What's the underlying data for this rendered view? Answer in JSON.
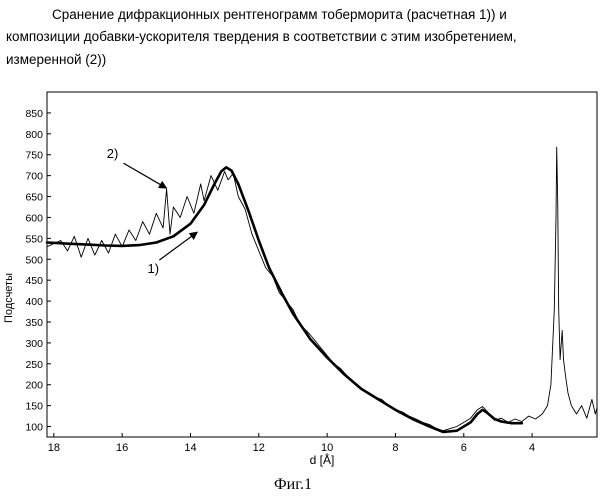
{
  "title_lines": [
    "Сранение дифракционных рентгенограмм тоберморита (расчетная 1)) и",
    "композиции добавки-ускорителя твердения в соответствии с этим изобретением,",
    "измеренной (2))"
  ],
  "figure_caption": "Фиг.1",
  "chart_data": {
    "type": "line",
    "title": "Сранение дифракционных рентгенограмм тоберморита (расчетная 1)) и композиции добавки-ускорителя твердения в соответствии с этим изобретением, измеренной (2))",
    "xlabel": "d [Å]",
    "ylabel": "Подсчеты",
    "x_reversed": true,
    "xlim": [
      18.2,
      2.1
    ],
    "ylim": [
      75,
      900
    ],
    "x_ticks": [
      18,
      16,
      14,
      12,
      10,
      8,
      6,
      4
    ],
    "y_ticks": [
      100,
      150,
      200,
      250,
      300,
      350,
      400,
      450,
      500,
      550,
      600,
      650,
      700,
      750,
      800,
      850
    ],
    "grid": false,
    "annotations": [
      {
        "text": "2)",
        "points_to_series": "measured",
        "x": 14.7,
        "y": 670
      },
      {
        "text": "1)",
        "points_to_series": "calculated",
        "x": 13.8,
        "y": 565
      }
    ],
    "series": [
      {
        "id": "calculated",
        "style": "thick smooth",
        "points": [
          [
            18.2,
            540
          ],
          [
            17.5,
            537
          ],
          [
            17.0,
            535
          ],
          [
            16.5,
            533
          ],
          [
            16.0,
            532
          ],
          [
            15.5,
            534
          ],
          [
            15.0,
            540
          ],
          [
            14.5,
            555
          ],
          [
            14.0,
            585
          ],
          [
            13.6,
            630
          ],
          [
            13.3,
            680
          ],
          [
            13.1,
            710
          ],
          [
            12.95,
            720
          ],
          [
            12.8,
            712
          ],
          [
            12.6,
            680
          ],
          [
            12.3,
            615
          ],
          [
            12.0,
            545
          ],
          [
            11.7,
            480
          ],
          [
            11.3,
            415
          ],
          [
            11.0,
            370
          ],
          [
            10.5,
            310
          ],
          [
            10.0,
            265
          ],
          [
            9.5,
            225
          ],
          [
            9.0,
            190
          ],
          [
            8.5,
            165
          ],
          [
            8.0,
            140
          ],
          [
            7.5,
            118
          ],
          [
            7.0,
            100
          ],
          [
            6.6,
            87
          ],
          [
            6.2,
            90
          ],
          [
            5.8,
            110
          ],
          [
            5.6,
            130
          ],
          [
            5.45,
            140
          ],
          [
            5.3,
            132
          ],
          [
            5.1,
            118
          ],
          [
            4.9,
            112
          ],
          [
            4.6,
            108
          ],
          [
            4.3,
            108
          ]
        ]
      },
      {
        "id": "measured",
        "style": "thin noisy",
        "points": [
          [
            18.2,
            530
          ],
          [
            17.8,
            545
          ],
          [
            17.6,
            520
          ],
          [
            17.4,
            555
          ],
          [
            17.2,
            505
          ],
          [
            17.0,
            550
          ],
          [
            16.8,
            510
          ],
          [
            16.6,
            545
          ],
          [
            16.4,
            515
          ],
          [
            16.2,
            560
          ],
          [
            16.0,
            530
          ],
          [
            15.8,
            570
          ],
          [
            15.6,
            545
          ],
          [
            15.4,
            590
          ],
          [
            15.2,
            560
          ],
          [
            15.0,
            610
          ],
          [
            14.8,
            575
          ],
          [
            14.7,
            668
          ],
          [
            14.6,
            560
          ],
          [
            14.5,
            625
          ],
          [
            14.3,
            600
          ],
          [
            14.1,
            650
          ],
          [
            13.9,
            610
          ],
          [
            13.7,
            680
          ],
          [
            13.6,
            640
          ],
          [
            13.4,
            700
          ],
          [
            13.2,
            665
          ],
          [
            13.0,
            710
          ],
          [
            12.9,
            690
          ],
          [
            12.75,
            705
          ],
          [
            12.6,
            650
          ],
          [
            12.4,
            620
          ],
          [
            12.2,
            560
          ],
          [
            12.0,
            520
          ],
          [
            11.8,
            480
          ],
          [
            11.6,
            460
          ],
          [
            11.4,
            420
          ],
          [
            11.2,
            400
          ],
          [
            11.0,
            380
          ],
          [
            10.8,
            345
          ],
          [
            10.5,
            320
          ],
          [
            10.2,
            290
          ],
          [
            10.0,
            270
          ],
          [
            9.8,
            250
          ],
          [
            9.6,
            238
          ],
          [
            9.4,
            220
          ],
          [
            9.2,
            205
          ],
          [
            9.0,
            190
          ],
          [
            8.8,
            180
          ],
          [
            8.6,
            170
          ],
          [
            8.4,
            165
          ],
          [
            8.2,
            150
          ],
          [
            8.0,
            140
          ],
          [
            7.8,
            135
          ],
          [
            7.6,
            125
          ],
          [
            7.4,
            118
          ],
          [
            7.2,
            110
          ],
          [
            7.0,
            105
          ],
          [
            6.8,
            95
          ],
          [
            6.6,
            90
          ],
          [
            6.4,
            95
          ],
          [
            6.2,
            100
          ],
          [
            6.0,
            110
          ],
          [
            5.8,
            120
          ],
          [
            5.6,
            140
          ],
          [
            5.45,
            148
          ],
          [
            5.3,
            135
          ],
          [
            5.1,
            115
          ],
          [
            4.9,
            120
          ],
          [
            4.7,
            110
          ],
          [
            4.5,
            118
          ],
          [
            4.3,
            112
          ],
          [
            4.1,
            125
          ],
          [
            3.9,
            118
          ],
          [
            3.7,
            130
          ],
          [
            3.55,
            150
          ],
          [
            3.45,
            200
          ],
          [
            3.35,
            380
          ],
          [
            3.3,
            600
          ],
          [
            3.28,
            768
          ],
          [
            3.25,
            640
          ],
          [
            3.22,
            380
          ],
          [
            3.18,
            260
          ],
          [
            3.12,
            330
          ],
          [
            3.08,
            260
          ],
          [
            3.02,
            220
          ],
          [
            2.95,
            180
          ],
          [
            2.85,
            150
          ],
          [
            2.7,
            130
          ],
          [
            2.55,
            150
          ],
          [
            2.4,
            120
          ],
          [
            2.25,
            165
          ],
          [
            2.15,
            130
          ],
          [
            2.1,
            145
          ]
        ]
      }
    ]
  }
}
